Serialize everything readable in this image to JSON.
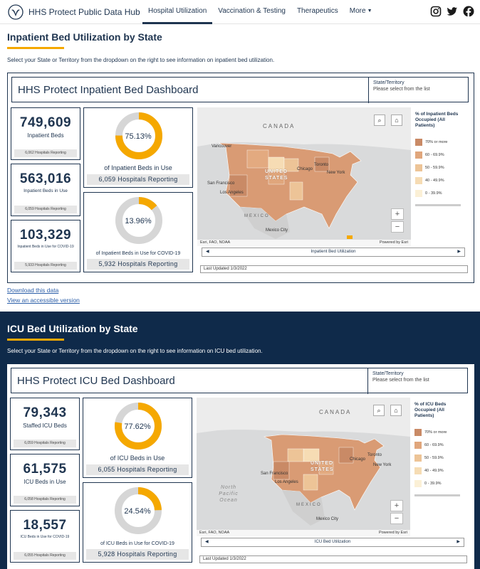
{
  "header": {
    "brand": "HHS Protect Public Data Hub",
    "nav": [
      {
        "label": "Hospital Utilization"
      },
      {
        "label": "Vaccination & Testing"
      },
      {
        "label": "Therapeutics"
      },
      {
        "label": "More"
      }
    ],
    "social": [
      "instagram-icon",
      "twitter-icon",
      "facebook-icon"
    ]
  },
  "inpatient": {
    "title": "Inpatient Bed Utilization by State",
    "desc": "Select your State or Territory from the dropdown on the right to see information on inpatient bed utilization.",
    "dashboard_title": "HHS Protect Inpatient Bed Dashboard",
    "state_label": "State/Territory",
    "state_placeholder": "Please select from the list",
    "kpis": [
      {
        "value": "749,609",
        "label": "Inpatient Beds",
        "foot": "6,062 Hospitals Reporting"
      },
      {
        "value": "563,016",
        "label": "Inpatient Beds in Use",
        "foot": "6,059 Hospitals Reporting"
      },
      {
        "value": "103,329",
        "label": "Inpatient Beds in Use for COVID-19",
        "foot": "5,933 Hospitals Reporting"
      }
    ],
    "donuts": [
      {
        "pct_text": "75.13%",
        "pct": 0.7513,
        "caption": "of Inpatient Beds in Use",
        "foot": "6,059 Hospitals Reporting"
      },
      {
        "pct_text": "13.96%",
        "pct": 0.1396,
        "caption": "of Inpatient Beds in Use for COVID-19",
        "foot": "5,932 Hospitals Reporting"
      }
    ],
    "map": {
      "legend_title": "% of Inpatient Beds Occupied (All Patients)",
      "pager_label": "Inpatient Bed Utilization",
      "attribution_left": "Esri, FAO, NOAA",
      "attribution_right": "Powered by Esri",
      "labels": {
        "canada": "CANADA",
        "vancouver": "Vancouver",
        "toronto": "Toronto",
        "chicago": "Chicago",
        "new_york": "New York",
        "san_francisco": "San Francisco",
        "los_angeles": "Los Angeles",
        "mexico": "MEXICO",
        "mexico_city": "Mexico City",
        "united_states": "UNITED STATES"
      },
      "updated": "Last Updated 1/3/2022"
    },
    "links": [
      "Download this data",
      "View an accessible version"
    ]
  },
  "icu": {
    "title": "ICU Bed Utilization by State",
    "desc": "Select your State or Territory from the dropdown on the right to see information on ICU bed utilization.",
    "dashboard_title": "HHS Protect ICU Bed Dashboard",
    "state_label": "State/Territory",
    "state_placeholder": "Please select from the list",
    "kpis": [
      {
        "value": "79,343",
        "label": "Staffed ICU Beds",
        "foot": "6,059 Hospitals Reporting"
      },
      {
        "value": "61,575",
        "label": "ICU Beds in Use",
        "foot": "6,058 Hospitals Reporting"
      },
      {
        "value": "18,557",
        "label": "ICU Beds in Use for COVID-19",
        "foot": "6,055 Hospitals Reporting"
      }
    ],
    "donuts": [
      {
        "pct_text": "77.62%",
        "pct": 0.7762,
        "caption": "of ICU Beds in Use",
        "foot": "6,055 Hospitals Reporting"
      },
      {
        "pct_text": "24.54%",
        "pct": 0.2454,
        "caption": "of ICU Beds in Use for COVID-19",
        "foot": "5,928 Hospitals Reporting"
      }
    ],
    "map": {
      "legend_title": "% of ICU Beds Occupied (All Patients)",
      "pager_label": "ICU Bed Utilization",
      "attribution_left": "Esri, FAO, NOAA",
      "attribution_right": "Powered by Esri",
      "labels": {
        "canada": "CANADA",
        "toronto": "Toronto",
        "chicago": "Chicago",
        "new_york": "New York",
        "san_francisco": "San Francisco",
        "los_angeles": "Los Angeles",
        "mexico": "MEXICO",
        "mexico_city": "Mexico City",
        "united_states": "UNITED STATES",
        "ocean": "North Pacific Ocean"
      },
      "updated": "Last Updated 1/3/2022"
    }
  },
  "legend": [
    {
      "label": "70% or more",
      "color": "#c98a66"
    },
    {
      "label": "60 - 69.9%",
      "color": "#e0a67c"
    },
    {
      "label": "50 - 59.9%",
      "color": "#edc497"
    },
    {
      "label": "40 - 49.9%",
      "color": "#f6dcb4"
    },
    {
      "label": "0 - 39.9%",
      "color": "#fbf0d6"
    }
  ],
  "colors": {
    "navy": "#1f3550",
    "accent": "#f5a800",
    "dark_band": "#0f2a4a"
  }
}
